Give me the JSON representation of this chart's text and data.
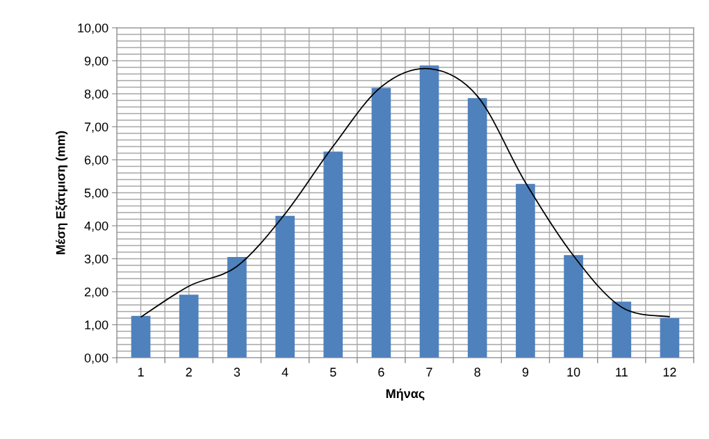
{
  "chart_data": {
    "type": "bar",
    "xlabel": "Μήνας",
    "ylabel": "Μέση Εξάτμιση (mm)",
    "categories": [
      "1",
      "2",
      "3",
      "4",
      "5",
      "6",
      "7",
      "8",
      "9",
      "10",
      "11",
      "12"
    ],
    "series": [
      {
        "color": "#4f81bd",
        "values": [
          1.27,
          1.91,
          3.05,
          4.3,
          6.25,
          8.18,
          8.86,
          7.87,
          5.27,
          3.11,
          1.7,
          1.2
        ]
      },
      {
        "type": "line",
        "color": "#000000",
        "values": [
          1.23,
          2.17,
          2.77,
          4.36,
          6.41,
          8.21,
          8.76,
          7.93,
          5.31,
          3.09,
          1.53,
          1.24
        ]
      }
    ],
    "ylim": [
      0,
      10
    ],
    "yticks": [
      {
        "value": 0,
        "label": "0,00"
      },
      {
        "value": 0.2,
        "label": null
      },
      {
        "value": 0.4,
        "label": null
      },
      {
        "value": 0.6,
        "label": null
      },
      {
        "value": 0.8,
        "label": null
      },
      {
        "value": 1,
        "label": "1,00"
      },
      {
        "value": 1.2,
        "label": null
      },
      {
        "value": 1.4,
        "label": null
      },
      {
        "value": 1.6,
        "label": null
      },
      {
        "value": 1.8,
        "label": null
      },
      {
        "value": 2,
        "label": "2,00"
      },
      {
        "value": 2.2,
        "label": null
      },
      {
        "value": 2.4,
        "label": null
      },
      {
        "value": 2.6,
        "label": null
      },
      {
        "value": 2.8,
        "label": null
      },
      {
        "value": 3,
        "label": "3,00"
      },
      {
        "value": 3.2,
        "label": null
      },
      {
        "value": 3.4,
        "label": null
      },
      {
        "value": 3.6,
        "label": null
      },
      {
        "value": 3.8,
        "label": null
      },
      {
        "value": 4,
        "label": "4,00"
      },
      {
        "value": 4.2,
        "label": null
      },
      {
        "value": 4.4,
        "label": null
      },
      {
        "value": 4.6,
        "label": null
      },
      {
        "value": 4.8,
        "label": null
      },
      {
        "value": 5,
        "label": "5,00"
      },
      {
        "value": 5.2,
        "label": null
      },
      {
        "value": 5.4,
        "label": null
      },
      {
        "value": 5.6,
        "label": null
      },
      {
        "value": 5.8,
        "label": null
      },
      {
        "value": 6,
        "label": "6,00"
      },
      {
        "value": 6.2,
        "label": null
      },
      {
        "value": 6.4,
        "label": null
      },
      {
        "value": 6.6,
        "label": null
      },
      {
        "value": 6.8,
        "label": null
      },
      {
        "value": 7,
        "label": "7,00"
      },
      {
        "value": 7.2,
        "label": null
      },
      {
        "value": 7.4,
        "label": null
      },
      {
        "value": 7.6,
        "label": null
      },
      {
        "value": 7.8,
        "label": null
      },
      {
        "value": 8,
        "label": "8,00"
      },
      {
        "value": 8.2,
        "label": null
      },
      {
        "value": 8.4,
        "label": null
      },
      {
        "value": 8.6,
        "label": null
      },
      {
        "value": 8.8,
        "label": null
      },
      {
        "value": 9,
        "label": "9,00"
      },
      {
        "value": 9.2,
        "label": null
      },
      {
        "value": 9.4,
        "label": null
      },
      {
        "value": 9.6,
        "label": null
      },
      {
        "value": 9.8,
        "label": null
      },
      {
        "value": 10,
        "label": "10,00"
      }
    ],
    "grid": true,
    "marker": "none",
    "line_style": "solid"
  }
}
